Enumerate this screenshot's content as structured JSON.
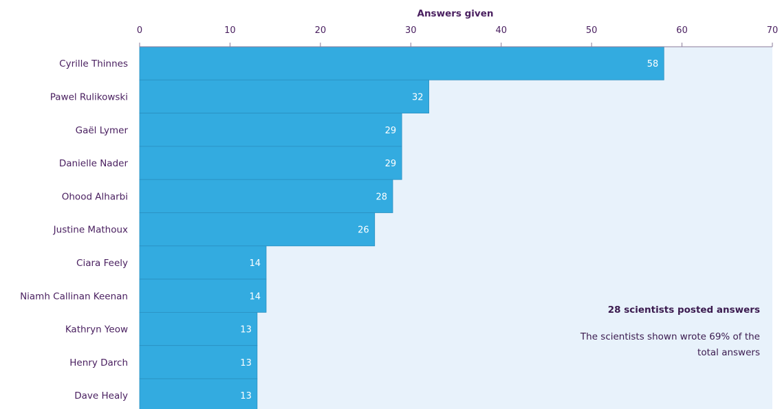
{
  "chart_data": {
    "type": "bar",
    "orientation": "horizontal",
    "xlabel": "Answers given",
    "xlim": [
      0,
      70
    ],
    "xticks": [
      0,
      10,
      20,
      30,
      40,
      50,
      60,
      70
    ],
    "categories": [
      "Cyrille Thinnes",
      "Pawel Rulikowski",
      "Gaël Lymer",
      "Danielle Nader",
      "Ohood Alharbi",
      "Justine Mathoux",
      "Ciara Feely",
      "Niamh Callinan Keenan",
      "Kathryn Yeow",
      "Henry Darch",
      "Dave Healy"
    ],
    "values": [
      58,
      32,
      29,
      29,
      28,
      26,
      14,
      14,
      13,
      13,
      13
    ],
    "data_labels": [
      "58",
      "32",
      "29",
      "29",
      "28",
      "26",
      "14",
      "14",
      "13",
      "13",
      "13"
    ],
    "grid": false,
    "annotation": {
      "title": "28 scientists posted answers",
      "text_lines": [
        "The scientists shown wrote 69% of the",
        "total answers"
      ]
    },
    "colors": {
      "bar": "#33abe0",
      "bar_edge": "#2a8fc0",
      "plot_background": "#e8f2fb",
      "text": "#4a2060",
      "axis": "#8a7a98"
    }
  }
}
